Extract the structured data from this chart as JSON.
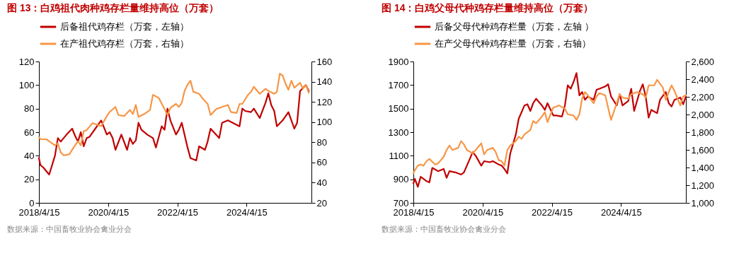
{
  "chart_data": [
    {
      "type": "line",
      "title": "图 13：白鸡祖代肉种鸡存栏量维持高位（万套）",
      "annotations": [
        "数据来源：中国畜牧业协会禽业分会"
      ],
      "xlim": [
        "2018-04-15",
        "2026-03"
      ],
      "xticks": [
        {
          "value": "2018-04-15",
          "label": "2018/4/15"
        },
        {
          "value": "2020-04-15",
          "label": "2020/4/15"
        },
        {
          "value": "2022-04-15",
          "label": "2022/4/15"
        },
        {
          "value": "2024-04-15",
          "label": "2024/4/15"
        }
      ],
      "ylim": [
        0,
        120
      ],
      "yticks": [
        0,
        20,
        40,
        60,
        80,
        100,
        120
      ],
      "y2lim": [
        20,
        160
      ],
      "y2ticks": [
        20,
        40,
        60,
        80,
        100,
        120,
        140,
        160
      ],
      "legend": "top",
      "series": [
        {
          "name": "后备祖代鸡存栏（万套，左轴）",
          "color": "#c00000",
          "x": [
            "2018-04-15",
            "2018-05",
            "2018-06",
            "2018-07",
            "2018-08",
            "2018-09",
            "2018-10",
            "2018-11",
            "2018-12",
            "2019-02",
            "2019-04",
            "2019-05",
            "2019-06",
            "2019-07",
            "2019-08",
            "2019-09",
            "2019-10",
            "2019-12",
            "2020-02",
            "2020-04",
            "2020-05",
            "2020-06",
            "2020-07",
            "2020-09",
            "2020-11",
            "2020-12",
            "2021-01",
            "2021-02",
            "2021-03",
            "2021-04",
            "2021-06",
            "2021-08",
            "2021-09",
            "2021-11",
            "2021-12",
            "2022-01",
            "2022-02",
            "2022-04",
            "2022-05",
            "2022-06",
            "2022-08",
            "2022-09",
            "2022-11",
            "2022-12",
            "2023-02",
            "2023-03",
            "2023-04",
            "2023-07",
            "2023-08",
            "2023-10",
            "2024-02",
            "2024-03",
            "2024-04",
            "2024-06",
            "2024-07",
            "2024-09",
            "2024-11",
            "2024-12",
            "2025-01",
            "2025-02",
            "2025-03",
            "2025-05",
            "2025-07",
            "2025-09",
            "2025-10",
            "2025-11",
            "2026-01",
            "2026-02"
          ],
          "values": [
            38,
            32,
            30,
            27,
            24,
            32,
            40,
            55,
            52,
            58,
            63,
            57,
            52,
            60,
            48,
            55,
            56,
            63,
            70,
            58,
            60,
            55,
            45,
            58,
            45,
            55,
            50,
            53,
            68,
            62,
            58,
            55,
            47,
            65,
            62,
            80,
            70,
            58,
            62,
            68,
            47,
            38,
            36,
            48,
            45,
            52,
            63,
            55,
            68,
            70,
            65,
            80,
            78,
            77,
            80,
            72,
            85,
            93,
            83,
            78,
            65,
            70,
            77,
            63,
            68,
            95,
            100,
            95
          ]
        },
        {
          "name": "在产祖代鸡存栏（万套，右轴）",
          "color": "#f79646",
          "axis": "y2",
          "x": [
            "2018-04-15",
            "2018-05",
            "2018-07",
            "2018-08",
            "2018-10",
            "2018-11",
            "2018-12",
            "2019-01",
            "2019-03",
            "2019-05",
            "2019-06",
            "2019-07",
            "2019-08",
            "2019-09",
            "2019-11",
            "2019-12",
            "2020-02",
            "2020-04",
            "2020-05",
            "2020-07",
            "2020-08",
            "2020-10",
            "2020-12",
            "2021-01",
            "2021-02",
            "2021-03",
            "2021-05",
            "2021-07",
            "2021-08",
            "2021-10",
            "2021-12",
            "2022-01",
            "2022-02",
            "2022-04",
            "2022-05",
            "2022-06",
            "2022-07",
            "2022-08",
            "2022-09",
            "2022-10",
            "2022-12",
            "2023-01",
            "2023-03",
            "2023-04",
            "2023-06",
            "2023-07",
            "2023-10",
            "2023-11",
            "2024-01",
            "2024-02",
            "2024-03",
            "2024-05",
            "2024-06",
            "2024-07",
            "2024-09",
            "2024-11",
            "2024-12",
            "2025-02",
            "2025-03",
            "2025-04",
            "2025-05",
            "2025-06",
            "2025-07",
            "2025-08",
            "2025-09",
            "2025-11",
            "2025-12",
            "2026-01",
            "2026-02"
          ],
          "values": [
            85,
            83,
            83,
            81,
            77,
            79,
            70,
            67,
            68,
            77,
            81,
            77,
            91,
            92,
            99,
            98,
            96,
            106,
            110,
            115,
            107,
            106,
            112,
            108,
            117,
            105,
            108,
            112,
            127,
            124,
            113,
            107,
            114,
            118,
            115,
            119,
            131,
            137,
            141,
            130,
            128,
            124,
            118,
            107,
            113,
            114,
            117,
            110,
            109,
            118,
            118,
            127,
            130,
            135,
            128,
            133,
            131,
            128,
            130,
            148,
            146,
            138,
            132,
            141,
            134,
            139,
            133,
            137,
            129
          ]
        }
      ]
    },
    {
      "type": "line",
      "title": "图 14：白鸡父母代种鸡存栏量维持高位（万套）",
      "annotations": [
        "数据来源：中国畜牧业协会禽业分会"
      ],
      "xlim": [
        "2018-04-15",
        "2026-03"
      ],
      "xticks": [
        {
          "value": "2018-04-15",
          "label": "2018/4/15"
        },
        {
          "value": "2020-04-15",
          "label": "2020/4/15"
        },
        {
          "value": "2022-04-15",
          "label": "2022/4/15"
        },
        {
          "value": "2024-04-15",
          "label": "2024/4/15"
        }
      ],
      "ylim": [
        700,
        1900
      ],
      "yticks": [
        700,
        900,
        1100,
        1300,
        1500,
        1700,
        1900
      ],
      "y2lim": [
        1000,
        2600
      ],
      "y2ticks": [
        {
          "value": 1000,
          "label": "1,000"
        },
        {
          "value": 1200,
          "label": "1,200"
        },
        {
          "value": 1400,
          "label": "1,400"
        },
        {
          "value": 1600,
          "label": "1,600"
        },
        {
          "value": 1800,
          "label": "1,800"
        },
        {
          "value": 2000,
          "label": "2,000"
        },
        {
          "value": 2200,
          "label": "2,200"
        },
        {
          "value": 2400,
          "label": "2,400"
        },
        {
          "value": 2600,
          "label": "2,600"
        }
      ],
      "legend": "top",
      "series": [
        {
          "name": "后备父母代种鸡存栏量（万套，左轴 ）",
          "color": "#c00000",
          "x": [
            "2018-04-15",
            "2018-05",
            "2018-06",
            "2018-07",
            "2018-08",
            "2018-09",
            "2018-10",
            "2018-11",
            "2019-01",
            "2019-03",
            "2019-04",
            "2019-05",
            "2019-07",
            "2019-09",
            "2019-10",
            "2019-11",
            "2020-01",
            "2020-02",
            "2020-04",
            "2020-05",
            "2020-07",
            "2020-08",
            "2020-10",
            "2020-11",
            "2020-12",
            "2021-01",
            "2021-02",
            "2021-03",
            "2021-04",
            "2021-05",
            "2021-07",
            "2021-08",
            "2021-09",
            "2021-10",
            "2021-11",
            "2022-01",
            "2022-02",
            "2022-03",
            "2022-05",
            "2022-06",
            "2022-08",
            "2022-09",
            "2022-10",
            "2022-11",
            "2022-12",
            "2023-01",
            "2023-02",
            "2023-03",
            "2023-04",
            "2023-05",
            "2023-07",
            "2023-08",
            "2023-09",
            "2023-11",
            "2023-12",
            "2024-01",
            "2024-03",
            "2024-04",
            "2024-05",
            "2024-07",
            "2024-08",
            "2024-09",
            "2024-11",
            "2024-12",
            "2025-01",
            "2025-02",
            "2025-03",
            "2025-05",
            "2025-06",
            "2025-08",
            "2025-09",
            "2025-10",
            "2025-11",
            "2026-01",
            "2026-02",
            "2026-03"
          ],
          "values": [
            865,
            903,
            836,
            921,
            903,
            884,
            874,
            997,
            969,
            988,
            912,
            969,
            959,
            940,
            959,
            1016,
            1130,
            1101,
            1016,
            1054,
            1045,
            1054,
            1026,
            1016,
            988,
            950,
            1120,
            1196,
            1281,
            1414,
            1527,
            1537,
            1480,
            1546,
            1584,
            1527,
            1489,
            1546,
            1442,
            1442,
            1433,
            1527,
            1698,
            1669,
            1726,
            1802,
            1612,
            1641,
            1575,
            1603,
            1575,
            1660,
            1669,
            1688,
            1707,
            1603,
            1527,
            1622,
            1527,
            1565,
            1669,
            1480,
            1650,
            1707,
            1603,
            1423,
            1489,
            1461,
            1575,
            1641,
            1546,
            1518,
            1575,
            1594,
            1537,
            1603
          ]
        },
        {
          "name": "在产父母代种鸡存栏量（万套，右轴）",
          "color": "#f79646",
          "axis": "y2",
          "x": [
            "2018-04-15",
            "2018-05",
            "2018-06",
            "2018-07",
            "2018-08",
            "2018-09",
            "2018-10",
            "2018-12",
            "2019-01",
            "2019-03",
            "2019-04",
            "2019-05",
            "2019-06",
            "2019-08",
            "2019-09",
            "2019-10",
            "2019-11",
            "2020-01",
            "2020-02",
            "2020-04",
            "2020-05",
            "2020-06",
            "2020-08",
            "2020-09",
            "2020-10",
            "2020-11",
            "2020-12",
            "2021-01",
            "2021-02",
            "2021-04",
            "2021-05",
            "2021-06",
            "2021-07",
            "2021-09",
            "2021-10",
            "2021-11",
            "2022-01",
            "2022-02",
            "2022-03",
            "2022-05",
            "2022-06",
            "2022-07",
            "2022-09",
            "2022-10",
            "2022-12",
            "2023-01",
            "2023-02",
            "2023-03",
            "2023-04",
            "2023-05",
            "2023-07",
            "2023-08",
            "2023-09",
            "2023-11",
            "2023-12",
            "2024-01",
            "2024-03",
            "2024-04",
            "2024-05",
            "2024-07",
            "2024-08",
            "2024-10",
            "2024-12",
            "2025-01",
            "2025-02",
            "2025-04",
            "2025-05",
            "2025-07",
            "2025-08",
            "2025-09",
            "2025-10",
            "2025-11",
            "2026-01",
            "2026-02",
            "2026-03"
          ],
          "values": [
            1333,
            1371,
            1421,
            1434,
            1421,
            1472,
            1497,
            1434,
            1447,
            1522,
            1598,
            1649,
            1598,
            1623,
            1699,
            1661,
            1598,
            1560,
            1598,
            1674,
            1548,
            1598,
            1623,
            1573,
            1485,
            1472,
            1421,
            1598,
            1649,
            1699,
            1750,
            1724,
            1775,
            1825,
            1926,
            1901,
            1977,
            2027,
            1914,
            2078,
            2090,
            2103,
            2065,
            2002,
            1989,
            1939,
            2002,
            2179,
            2254,
            2217,
            2128,
            2204,
            2242,
            2217,
            2078,
            1939,
            2128,
            2229,
            2191,
            2179,
            2229,
            2254,
            2229,
            2191,
            2330,
            2330,
            2393,
            2305,
            2166,
            2254,
            2330,
            2267,
            2103,
            2204,
            2217
          ]
        }
      ]
    }
  ]
}
